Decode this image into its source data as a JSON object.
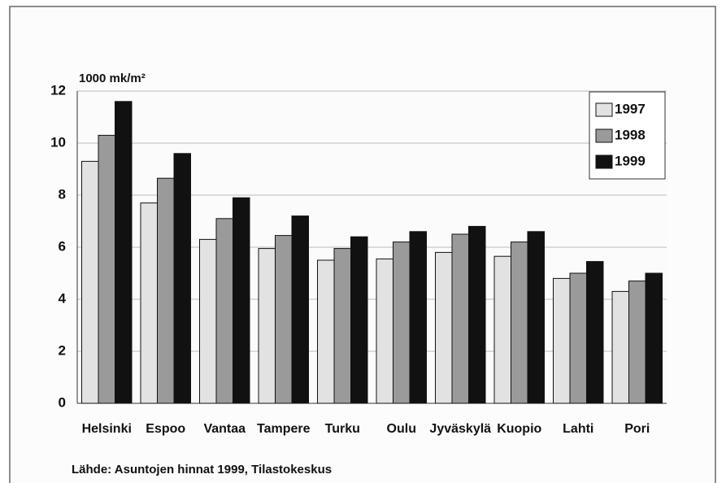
{
  "chart_data": {
    "type": "bar",
    "y_axis_label": "1000 mk/m²",
    "source": "Lähde: Asuntojen hinnat 1999, Tilastokeskus",
    "categories": [
      "Helsinki",
      "Espoo",
      "Vantaa",
      "Tampere",
      "Turku",
      "Oulu",
      "Jyväskylä",
      "Kuopio",
      "Lahti",
      "Pori"
    ],
    "series": [
      {
        "name": "1997",
        "color": "#e2e2e2",
        "values": [
          9.3,
          7.7,
          6.3,
          5.95,
          5.5,
          5.55,
          5.8,
          5.65,
          4.8,
          4.3
        ]
      },
      {
        "name": "1998",
        "color": "#9a9a9a",
        "values": [
          10.3,
          8.65,
          7.1,
          6.45,
          5.95,
          6.2,
          6.5,
          6.2,
          5.0,
          4.7
        ]
      },
      {
        "name": "1999",
        "color": "#111111",
        "values": [
          11.6,
          9.6,
          7.9,
          7.2,
          6.4,
          6.6,
          6.8,
          6.6,
          5.45,
          5.0
        ]
      }
    ],
    "ylim": [
      0,
      12
    ],
    "yticks": [
      0,
      2,
      4,
      6,
      8,
      10,
      12
    ],
    "grid": true,
    "legend": "top-right"
  }
}
